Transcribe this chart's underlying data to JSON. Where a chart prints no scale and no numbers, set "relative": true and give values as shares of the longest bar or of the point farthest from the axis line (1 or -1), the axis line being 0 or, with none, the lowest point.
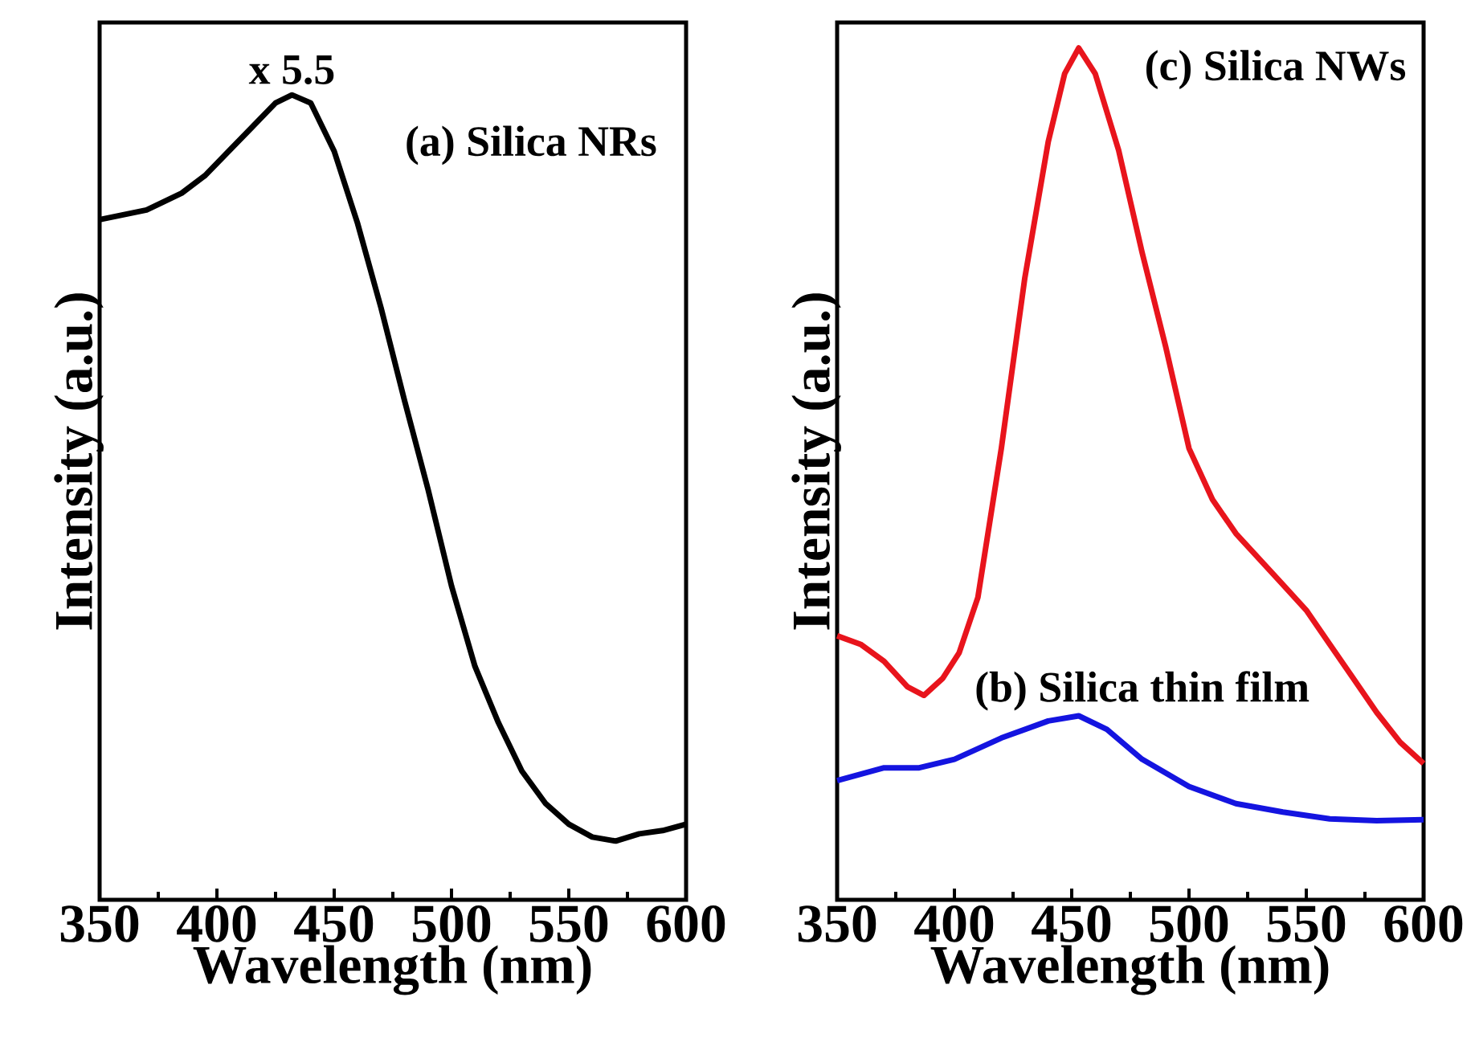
{
  "chart_data": [
    {
      "type": "line",
      "xlabel": "Wavelength (nm)",
      "ylabel": "Intensity (a.u.)",
      "relative": true,
      "xlim": [
        350,
        600
      ],
      "xticks": [
        350,
        400,
        450,
        500,
        550,
        600
      ],
      "annotations": [
        {
          "text": "x 5.5",
          "x": 432,
          "y": 1
        }
      ],
      "series": [
        {
          "name": "(a) Silica NRs",
          "color": "#000000",
          "x": [
            350,
            370,
            385,
            395,
            405,
            415,
            425,
            432,
            440,
            450,
            460,
            470,
            480,
            490,
            500,
            510,
            520,
            530,
            540,
            550,
            560,
            570,
            580,
            590,
            600
          ],
          "values": [
            0.845,
            0.857,
            0.878,
            0.9,
            0.93,
            0.96,
            0.99,
            1.0,
            0.99,
            0.93,
            0.84,
            0.735,
            0.62,
            0.51,
            0.39,
            0.29,
            0.22,
            0.16,
            0.12,
            0.094,
            0.078,
            0.073,
            0.082,
            0.086,
            0.094
          ]
        }
      ]
    },
    {
      "type": "line",
      "xlabel": "Wavelength (nm)",
      "ylabel": "Intensity (a.u.)",
      "relative": true,
      "xlim": [
        350,
        600
      ],
      "xticks": [
        350,
        400,
        450,
        500,
        550,
        600
      ],
      "series": [
        {
          "name": "(c) Silica NWs",
          "color": "#e8141c",
          "x": [
            350,
            360,
            370,
            380,
            387,
            395,
            402,
            410,
            420,
            430,
            440,
            447,
            453,
            460,
            470,
            480,
            490,
            500,
            510,
            520,
            530,
            540,
            550,
            560,
            570,
            580,
            590,
            600
          ],
          "values": [
            0.31,
            0.3,
            0.28,
            0.25,
            0.24,
            0.26,
            0.29,
            0.355,
            0.53,
            0.73,
            0.89,
            0.97,
            1.0,
            0.97,
            0.88,
            0.76,
            0.65,
            0.53,
            0.47,
            0.43,
            0.4,
            0.37,
            0.34,
            0.3,
            0.26,
            0.22,
            0.185,
            0.16
          ]
        },
        {
          "name": "(b) Silica thin film",
          "color": "#1414e0",
          "x": [
            350,
            370,
            385,
            400,
            420,
            440,
            453,
            465,
            480,
            500,
            520,
            540,
            560,
            580,
            600
          ],
          "values": [
            0.14,
            0.155,
            0.155,
            0.165,
            0.19,
            0.21,
            0.216,
            0.2,
            0.165,
            0.133,
            0.113,
            0.103,
            0.095,
            0.093,
            0.094
          ]
        }
      ]
    }
  ]
}
